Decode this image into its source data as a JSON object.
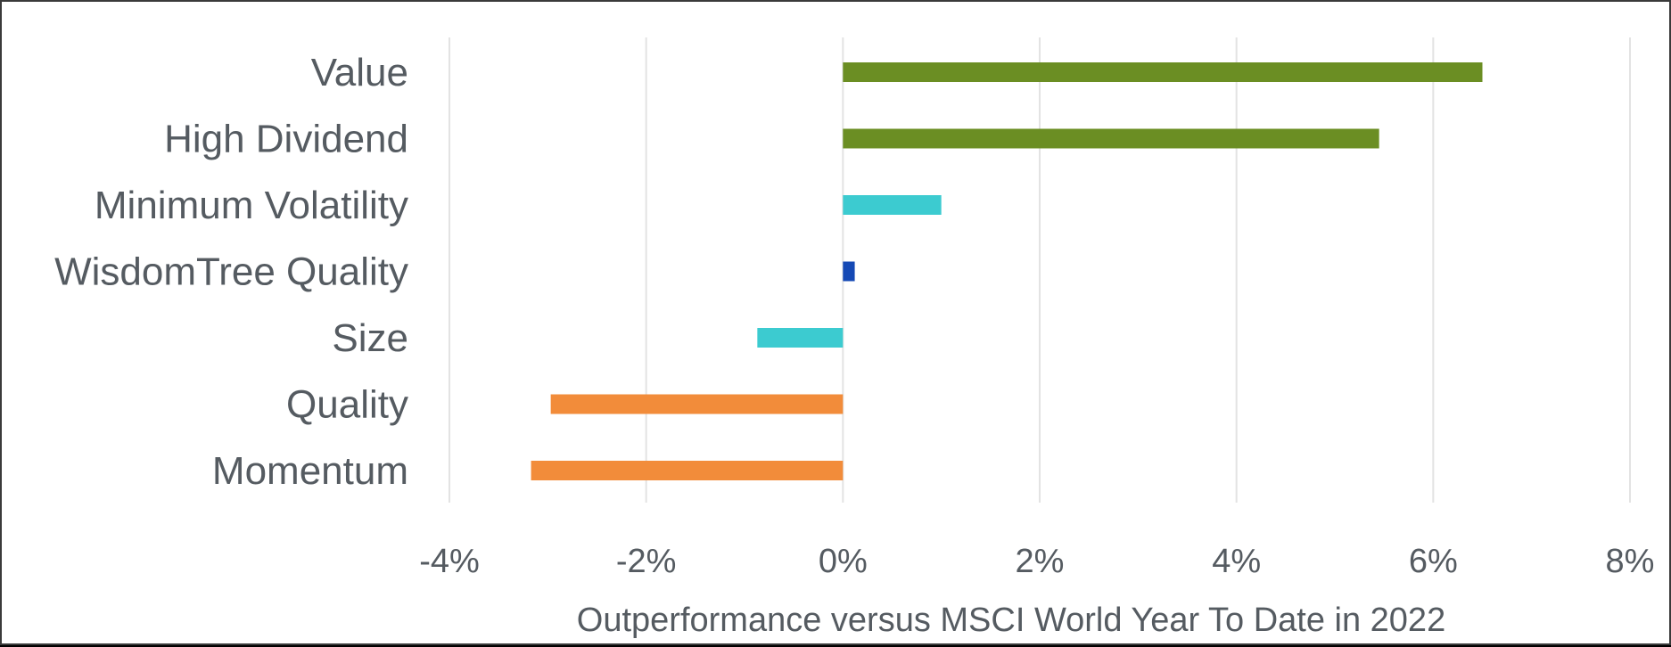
{
  "chart_data": {
    "type": "bar",
    "orientation": "horizontal",
    "title": "",
    "xlabel": "Outperformance versus MSCI World Year To Date in 2022",
    "ylabel": "",
    "categories": [
      "Value",
      "High Dividend",
      "Minimum Volatility",
      "WisdomTree Quality",
      "Size",
      "Quality",
      "Momentum"
    ],
    "values": [
      6.5,
      5.45,
      1.0,
      0.12,
      -0.87,
      -2.97,
      -3.17
    ],
    "bar_colors": [
      "#6b8e23",
      "#6b8e23",
      "#3ccbd0",
      "#1549b5",
      "#3ccbd0",
      "#f28c3a",
      "#f28c3a"
    ],
    "xlim": [
      -4,
      8
    ],
    "xticks": [
      -4,
      -2,
      0,
      2,
      4,
      6,
      8
    ],
    "xtick_labels": [
      "-4%",
      "-2%",
      "0%",
      "2%",
      "4%",
      "6%",
      "8%"
    ],
    "value_unit": "%",
    "grid": "vertical",
    "legend": "none"
  }
}
